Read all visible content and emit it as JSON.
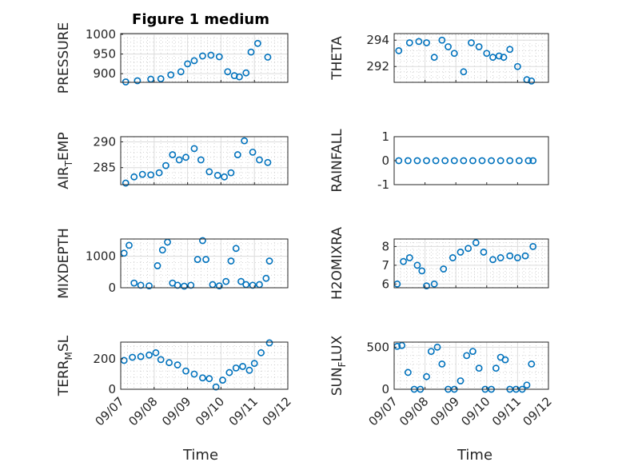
{
  "figure": {
    "title": "Figure 1 medium",
    "xlabel": "Time"
  },
  "colors": {
    "marker": "#0072BD",
    "axis": "#262626"
  },
  "x_ticks": [
    "09/07",
    "09/08",
    "09/09",
    "09/10",
    "09/11",
    "09/12"
  ],
  "chart_data": [
    {
      "type": "scatter",
      "ylabel": "PRESSURE",
      "ylim": [
        878,
        1002
      ],
      "yticks": [
        900,
        950,
        1000
      ],
      "ytick_labels": [
        "900",
        "950",
        "1000"
      ],
      "xlim": [
        0,
        5
      ],
      "grid": "on",
      "minor_grid": true,
      "series": [
        {
          "x": [
            0.15,
            0.5,
            0.9,
            1.2,
            1.5,
            1.8,
            2.0,
            2.2,
            2.45,
            2.7,
            2.95,
            3.2,
            3.4,
            3.55,
            3.75,
            3.9,
            4.1,
            4.4
          ],
          "y": [
            879,
            882,
            886,
            887,
            897,
            905,
            925,
            933,
            945,
            947,
            943,
            905,
            895,
            892,
            902,
            955,
            977,
            942
          ]
        }
      ]
    },
    {
      "type": "scatter",
      "ylabel": "THETA",
      "ylim": [
        290.8,
        294.5
      ],
      "yticks": [
        292,
        294
      ],
      "ytick_labels": [
        "292",
        "294"
      ],
      "xlim": [
        0,
        5
      ],
      "grid": "on",
      "minor_grid": true,
      "series": [
        {
          "x": [
            0.15,
            0.5,
            0.8,
            1.05,
            1.3,
            1.55,
            1.75,
            1.95,
            2.25,
            2.5,
            2.75,
            3.0,
            3.2,
            3.4,
            3.55,
            3.75,
            4.0,
            4.3,
            4.45
          ],
          "y": [
            293.2,
            293.8,
            293.9,
            293.8,
            292.7,
            294.0,
            293.5,
            293.0,
            291.6,
            293.8,
            293.5,
            293.0,
            292.7,
            292.8,
            292.7,
            293.3,
            292.0,
            291.0,
            290.9
          ]
        }
      ]
    },
    {
      "type": "scatter",
      "ylabel": "AIR_T_EMP",
      "ylim": [
        281.7,
        291
      ],
      "yticks": [
        285,
        290
      ],
      "ytick_labels": [
        "285",
        "290"
      ],
      "xlim": [
        0,
        5
      ],
      "grid": "on",
      "minor_grid": true,
      "series": [
        {
          "x": [
            0.15,
            0.4,
            0.65,
            0.9,
            1.15,
            1.35,
            1.55,
            1.75,
            1.95,
            2.2,
            2.4,
            2.65,
            2.9,
            3.1,
            3.3,
            3.5,
            3.7,
            3.95,
            4.15,
            4.4
          ],
          "y": [
            282,
            283.2,
            283.7,
            283.6,
            284,
            285.4,
            287.5,
            286.5,
            287,
            288.7,
            286.5,
            284.2,
            283.5,
            283.2,
            284,
            287.5,
            290.2,
            288,
            286.5,
            286
          ]
        }
      ]
    },
    {
      "type": "scatter",
      "ylabel": "RAINFALL",
      "ylim": [
        -1,
        1
      ],
      "yticks": [
        -1,
        0,
        1
      ],
      "ytick_labels": [
        "-1",
        "0",
        "1"
      ],
      "xlim": [
        0,
        5
      ],
      "grid": "off",
      "series": [
        {
          "x": [
            0.15,
            0.45,
            0.75,
            1.05,
            1.35,
            1.65,
            1.95,
            2.25,
            2.55,
            2.85,
            3.15,
            3.45,
            3.75,
            4.05,
            4.35,
            4.5
          ],
          "y": [
            0,
            0,
            0,
            0,
            0,
            0,
            0,
            0,
            0,
            0,
            0,
            0,
            0,
            0,
            0,
            0
          ]
        }
      ]
    },
    {
      "type": "scatter",
      "ylabel": "MIXDEPTH",
      "ylim": [
        0,
        1550
      ],
      "yticks": [
        0,
        1000
      ],
      "ytick_labels": [
        "0",
        "1000"
      ],
      "xlim": [
        0,
        5
      ],
      "grid": "on",
      "minor_grid": true,
      "series": [
        {
          "x": [
            0.1,
            0.25,
            0.4,
            0.6,
            0.85,
            1.1,
            1.25,
            1.4,
            1.55,
            1.7,
            1.9,
            2.1,
            2.3,
            2.45,
            2.55,
            2.75,
            2.95,
            3.15,
            3.3,
            3.45,
            3.6,
            3.75,
            3.95,
            4.15,
            4.35,
            4.45
          ],
          "y": [
            1100,
            1350,
            150,
            80,
            60,
            700,
            1200,
            1450,
            150,
            80,
            50,
            80,
            900,
            1500,
            900,
            100,
            60,
            200,
            850,
            1250,
            200,
            100,
            80,
            100,
            300,
            850
          ]
        }
      ]
    },
    {
      "type": "scatter",
      "ylabel": "H2OMIXRA",
      "ylim": [
        5.8,
        8.4
      ],
      "yticks": [
        6,
        7,
        8
      ],
      "ytick_labels": [
        "6",
        "7",
        "8"
      ],
      "xlim": [
        0,
        5
      ],
      "grid": "on",
      "minor_grid": true,
      "series": [
        {
          "x": [
            0.1,
            0.3,
            0.5,
            0.75,
            0.9,
            1.05,
            1.3,
            1.6,
            1.9,
            2.15,
            2.4,
            2.65,
            2.9,
            3.2,
            3.45,
            3.75,
            4.0,
            4.25,
            4.5
          ],
          "y": [
            6.0,
            7.2,
            7.4,
            7.0,
            6.7,
            5.9,
            6.0,
            6.8,
            7.4,
            7.7,
            7.9,
            8.2,
            7.7,
            7.3,
            7.4,
            7.5,
            7.4,
            7.5,
            8.0
          ]
        }
      ]
    },
    {
      "type": "scatter",
      "ylabel": "TERR_M_SL",
      "ylim": [
        0,
        310
      ],
      "yticks": [
        0,
        200
      ],
      "ytick_labels": [
        "0",
        "200"
      ],
      "xlim": [
        0,
        5
      ],
      "grid": "on",
      "minor_grid": true,
      "series": [
        {
          "x": [
            0.1,
            0.35,
            0.6,
            0.85,
            1.05,
            1.2,
            1.45,
            1.7,
            1.95,
            2.2,
            2.45,
            2.65,
            2.85,
            3.05,
            3.25,
            3.45,
            3.65,
            3.85,
            4.0,
            4.2,
            4.45
          ],
          "y": [
            190,
            210,
            215,
            225,
            240,
            195,
            175,
            160,
            120,
            100,
            75,
            70,
            15,
            60,
            110,
            140,
            150,
            125,
            170,
            240,
            305
          ]
        }
      ]
    },
    {
      "type": "scatter",
      "ylabel": "SUN_F_LUX",
      "ylim": [
        0,
        560
      ],
      "yticks": [
        0,
        500
      ],
      "ytick_labels": [
        "0",
        "500"
      ],
      "xlim": [
        0,
        5
      ],
      "grid": "on",
      "minor_grid": true,
      "series": [
        {
          "x": [
            0.1,
            0.25,
            0.45,
            0.65,
            0.85,
            1.05,
            1.2,
            1.4,
            1.55,
            1.75,
            1.95,
            2.15,
            2.35,
            2.55,
            2.75,
            2.95,
            3.15,
            3.3,
            3.45,
            3.6,
            3.75,
            3.95,
            4.15,
            4.3,
            4.45
          ],
          "y": [
            510,
            520,
            200,
            0,
            0,
            150,
            450,
            500,
            300,
            0,
            0,
            100,
            400,
            450,
            250,
            0,
            0,
            250,
            380,
            350,
            0,
            0,
            0,
            50,
            300
          ]
        }
      ]
    }
  ]
}
